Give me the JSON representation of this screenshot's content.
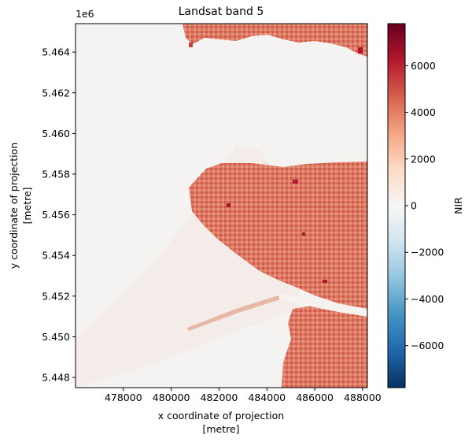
{
  "chart_data": {
    "type": "heatmap",
    "title": "Landsat band 5",
    "xlabel_line1": "x coordinate of projection",
    "xlabel_line2": "[metre]",
    "ylabel_line1": "y coordinate of projection",
    "ylabel_line2": "[metre]",
    "y_offset_label": "1e6",
    "xlim": [
      476000,
      488200
    ],
    "ylim": [
      5447500,
      5465400
    ],
    "x_ticks": [
      478000,
      480000,
      482000,
      484000,
      486000,
      488000
    ],
    "x_tick_labels": [
      "478000",
      "480000",
      "482000",
      "484000",
      "486000",
      "488000"
    ],
    "y_ticks": [
      5.448,
      5.45,
      5.452,
      5.454,
      5.456,
      5.458,
      5.46,
      5.462,
      5.464
    ],
    "y_tick_labels": [
      "5.448",
      "5.450",
      "5.452",
      "5.454",
      "5.456",
      "5.458",
      "5.460",
      "5.462",
      "5.464"
    ],
    "colormap": "RdBu_r",
    "colorbar": {
      "label": "NIR",
      "range": [
        -7800,
        7800
      ],
      "ticks": [
        -6000,
        -4000,
        -2000,
        0,
        2000,
        4000,
        6000
      ],
      "tick_labels": [
        "−6000",
        "−4000",
        "−2000",
        "0",
        "2000",
        "4000",
        "6000"
      ],
      "colors": [
        "#053061",
        "#2166ac",
        "#4393c3",
        "#92c5de",
        "#d1e5f0",
        "#f7f7f7",
        "#fddbc7",
        "#f4a582",
        "#d6604d",
        "#b2182b",
        "#67001f"
      ]
    },
    "water_color": "#f4f3f2",
    "land_color": "#d86a55"
  }
}
